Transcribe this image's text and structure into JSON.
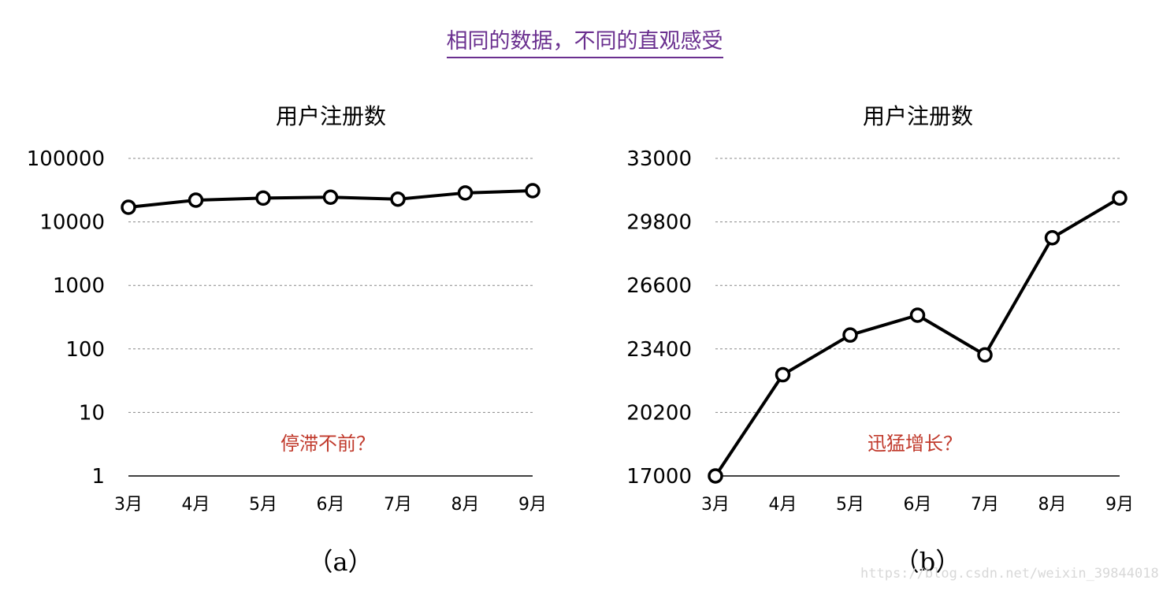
{
  "page_title": "相同的数据，不同的直观感受",
  "watermark": "https://blog.csdn.net/weixin_39844018",
  "colors": {
    "title": "#6a2f8f",
    "annotation": "#c0392b",
    "line": "#000000",
    "grid": "#888888"
  },
  "chart_data": [
    {
      "type": "line",
      "title": "用户注册数",
      "categories": [
        "3月",
        "4月",
        "5月",
        "6月",
        "7月",
        "8月",
        "9月"
      ],
      "series": [
        {
          "values": [
            17000,
            22000,
            23700,
            24500,
            22800,
            28600,
            31000
          ]
        }
      ],
      "yscale": "log",
      "ylim": [
        1,
        100000
      ],
      "yticks": [
        1,
        10,
        100,
        1000,
        10000,
        100000
      ],
      "ytick_labels": [
        "1",
        "10",
        "100",
        "1000",
        "10000",
        "100000"
      ],
      "grid": true,
      "annotation": "停滞不前？",
      "caption": "（a）"
    },
    {
      "type": "line",
      "title": "用户注册数",
      "categories": [
        "3月",
        "4月",
        "5月",
        "6月",
        "7月",
        "8月",
        "9月"
      ],
      "series": [
        {
          "values": [
            17000,
            22100,
            24100,
            25100,
            23100,
            29000,
            31000
          ]
        }
      ],
      "yscale": "linear",
      "ylim": [
        17000,
        33000
      ],
      "yticks": [
        17000,
        20200,
        23400,
        26600,
        29800,
        33000
      ],
      "ytick_labels": [
        "17000",
        "20200",
        "23400",
        "26600",
        "29800",
        "33000"
      ],
      "grid": true,
      "annotation": "迅猛增长？",
      "caption": "（b）"
    }
  ]
}
